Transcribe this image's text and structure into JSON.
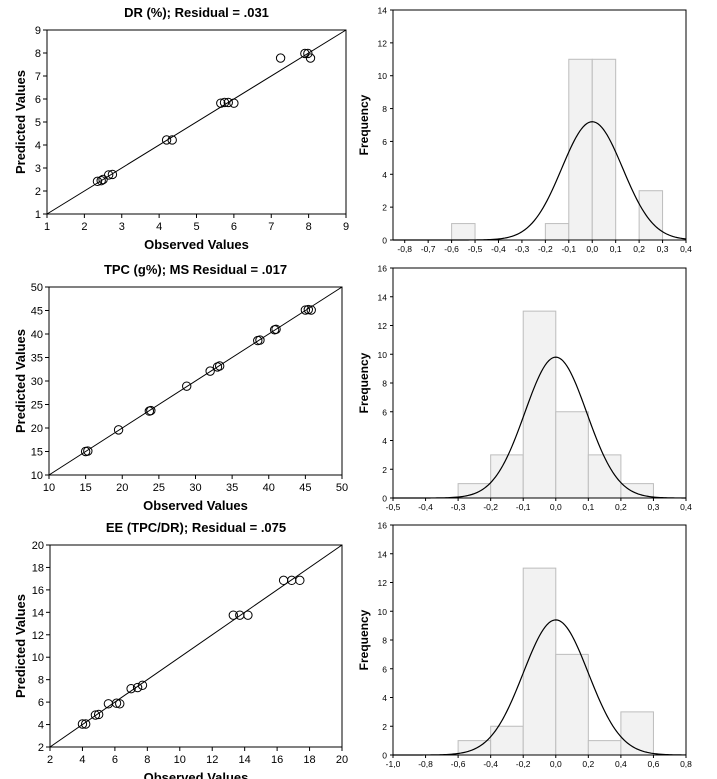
{
  "chart_data": [
    {
      "type": "scatter",
      "title": "DR (%); Residual = .031",
      "xlabel": "Observed Values",
      "ylabel": "Predicted Values",
      "xlim": [
        1,
        9
      ],
      "ylim": [
        1,
        9
      ],
      "xticks": [
        "1",
        "2",
        "3",
        "4",
        "5",
        "6",
        "7",
        "8",
        "9"
      ],
      "yticks": [
        "1",
        "2",
        "3",
        "4",
        "5",
        "6",
        "7",
        "8",
        "9"
      ],
      "fit_line": [
        [
          1,
          1
        ],
        [
          9,
          9
        ]
      ],
      "points": [
        [
          2.35,
          2.42
        ],
        [
          2.45,
          2.45
        ],
        [
          2.5,
          2.5
        ],
        [
          2.65,
          2.7
        ],
        [
          2.75,
          2.72
        ],
        [
          4.2,
          4.22
        ],
        [
          4.35,
          4.22
        ],
        [
          5.65,
          5.82
        ],
        [
          5.75,
          5.85
        ],
        [
          5.85,
          5.85
        ],
        [
          6.0,
          5.82
        ],
        [
          7.25,
          7.78
        ],
        [
          7.9,
          7.98
        ],
        [
          7.98,
          7.98
        ],
        [
          8.05,
          7.78
        ]
      ]
    },
    {
      "type": "bar",
      "subtype": "histogram",
      "title": "",
      "xlabel": "",
      "ylabel": "Frequency",
      "xlim": [
        -0.85,
        0.4
      ],
      "ylim": [
        0,
        14
      ],
      "xticks": [
        "-0,8",
        "-0,7",
        "-0,6",
        "-0,5",
        "-0,4",
        "-0,3",
        "-0,2",
        "-0,1",
        "0,0",
        "0,1",
        "0,2",
        "0,3",
        "0,4"
      ],
      "yticks": [
        "0",
        "2",
        "4",
        "6",
        "8",
        "10",
        "12",
        "14"
      ],
      "bin_width": 0.1,
      "bins": [
        {
          "x0": -0.6,
          "x1": -0.5,
          "count": 1
        },
        {
          "x0": -0.2,
          "x1": -0.1,
          "count": 1
        },
        {
          "x0": -0.1,
          "x1": 0.0,
          "count": 11
        },
        {
          "x0": 0.0,
          "x1": 0.1,
          "count": 11
        },
        {
          "x0": 0.2,
          "x1": 0.3,
          "count": 3
        }
      ],
      "normal_curve": {
        "mean": 0.0,
        "peak": 7.2,
        "sd": 0.13
      }
    },
    {
      "type": "scatter",
      "title": "TPC (g%); MS Residual = .017",
      "xlabel": "Observed Values",
      "ylabel": "Predicted Values",
      "xlim": [
        10,
        50
      ],
      "ylim": [
        10,
        50
      ],
      "xticks": [
        "10",
        "15",
        "20",
        "25",
        "30",
        "35",
        "40",
        "45",
        "50"
      ],
      "yticks": [
        "10",
        "15",
        "20",
        "25",
        "30",
        "35",
        "40",
        "45",
        "50"
      ],
      "fit_line": [
        [
          10,
          10
        ],
        [
          50,
          50
        ]
      ],
      "points": [
        [
          15.0,
          15.0
        ],
        [
          15.3,
          15.1
        ],
        [
          19.5,
          19.6
        ],
        [
          23.7,
          23.6
        ],
        [
          23.9,
          23.7
        ],
        [
          28.8,
          28.9
        ],
        [
          32.0,
          32.1
        ],
        [
          33.0,
          33.0
        ],
        [
          33.3,
          33.2
        ],
        [
          38.5,
          38.6
        ],
        [
          38.8,
          38.7
        ],
        [
          40.8,
          40.9
        ],
        [
          41.0,
          41.0
        ],
        [
          45.0,
          45.1
        ],
        [
          45.4,
          45.2
        ],
        [
          45.8,
          45.1
        ]
      ]
    },
    {
      "type": "bar",
      "subtype": "histogram",
      "title": "",
      "xlabel": "",
      "ylabel": "Frequency",
      "xlim": [
        -0.5,
        0.4
      ],
      "ylim": [
        0,
        16
      ],
      "xticks": [
        "-0,5",
        "-0,4",
        "-0,3",
        "-0,2",
        "-0,1",
        "0,0",
        "0,1",
        "0,2",
        "0,3",
        "0,4"
      ],
      "yticks": [
        "0",
        "2",
        "4",
        "6",
        "8",
        "10",
        "12",
        "14",
        "16"
      ],
      "bin_width": 0.1,
      "bins": [
        {
          "x0": -0.3,
          "x1": -0.2,
          "count": 1
        },
        {
          "x0": -0.2,
          "x1": -0.1,
          "count": 3
        },
        {
          "x0": -0.1,
          "x1": 0.0,
          "count": 13
        },
        {
          "x0": 0.0,
          "x1": 0.1,
          "count": 6
        },
        {
          "x0": 0.1,
          "x1": 0.2,
          "count": 3
        },
        {
          "x0": 0.2,
          "x1": 0.3,
          "count": 1
        }
      ],
      "normal_curve": {
        "mean": 0.0,
        "peak": 9.8,
        "sd": 0.095
      }
    },
    {
      "type": "scatter",
      "title": "EE (TPC/DR); Residual = .075",
      "xlabel": "Observed Values",
      "ylabel": "Predicted Values",
      "xlim": [
        2,
        20
      ],
      "ylim": [
        2,
        20
      ],
      "xticks": [
        "2",
        "4",
        "6",
        "8",
        "10",
        "12",
        "14",
        "16",
        "18",
        "20"
      ],
      "yticks": [
        "2",
        "4",
        "6",
        "8",
        "10",
        "12",
        "14",
        "16",
        "18",
        "20"
      ],
      "fit_line": [
        [
          2,
          2
        ],
        [
          20,
          20
        ]
      ],
      "points": [
        [
          4.0,
          4.05
        ],
        [
          4.2,
          4.05
        ],
        [
          4.8,
          4.85
        ],
        [
          5.0,
          4.9
        ],
        [
          5.6,
          5.85
        ],
        [
          6.1,
          5.9
        ],
        [
          6.3,
          5.85
        ],
        [
          7.0,
          7.2
        ],
        [
          7.4,
          7.3
        ],
        [
          7.7,
          7.5
        ],
        [
          13.3,
          13.75
        ],
        [
          13.7,
          13.75
        ],
        [
          14.2,
          13.75
        ],
        [
          16.4,
          16.85
        ],
        [
          16.9,
          16.85
        ],
        [
          17.4,
          16.85
        ]
      ]
    },
    {
      "type": "bar",
      "subtype": "histogram",
      "title": "",
      "xlabel": "",
      "ylabel": "Frequency",
      "xlim": [
        -1.0,
        0.8
      ],
      "ylim": [
        0,
        16
      ],
      "xticks": [
        "-1,0",
        "-0,8",
        "-0,6",
        "-0,4",
        "-0,2",
        "0,0",
        "0,2",
        "0,4",
        "0,6",
        "0,8"
      ],
      "yticks": [
        "0",
        "2",
        "4",
        "6",
        "8",
        "10",
        "12",
        "14",
        "16"
      ],
      "bin_width": 0.2,
      "bins": [
        {
          "x0": -0.6,
          "x1": -0.4,
          "count": 1
        },
        {
          "x0": -0.4,
          "x1": -0.2,
          "count": 2
        },
        {
          "x0": -0.2,
          "x1": 0.0,
          "count": 13
        },
        {
          "x0": 0.0,
          "x1": 0.2,
          "count": 7
        },
        {
          "x0": 0.2,
          "x1": 0.4,
          "count": 1
        },
        {
          "x0": 0.4,
          "x1": 0.6,
          "count": 3
        }
      ],
      "normal_curve": {
        "mean": 0.0,
        "peak": 9.4,
        "sd": 0.2
      }
    }
  ]
}
